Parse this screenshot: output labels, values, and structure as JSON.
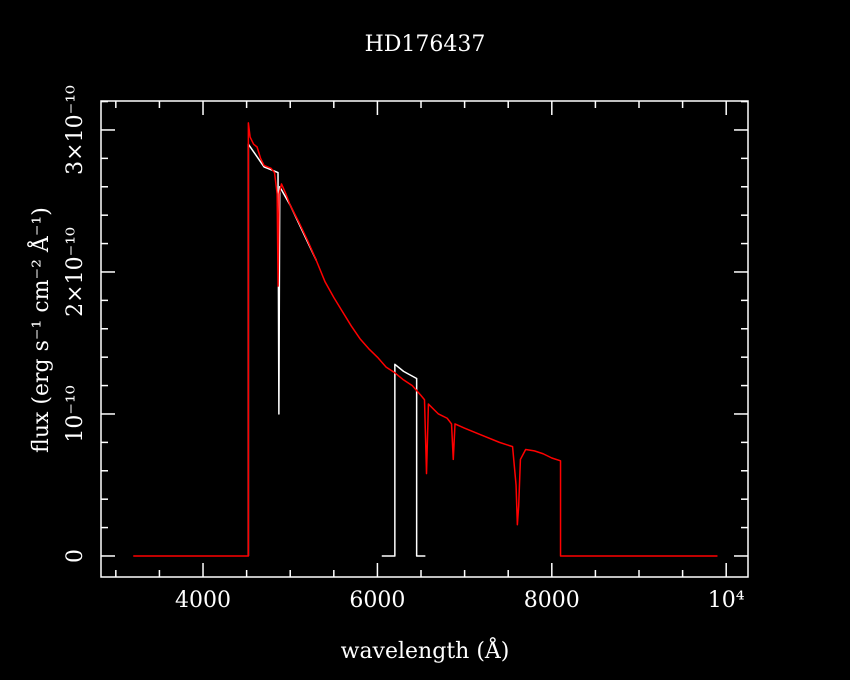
{
  "chart_data": {
    "type": "line",
    "title": "HD176437",
    "x_label": "wavelength (Å)",
    "y_label": "flux (erg s⁻¹ cm⁻² Å⁻¹)",
    "xlim": [
      2830,
      10250
    ],
    "ylim": [
      -1.48e-11,
      3.204e-10
    ],
    "xticks": [
      4000,
      6000,
      8000,
      {
        "value": 10000,
        "label": "10⁴"
      }
    ],
    "yticks": [
      0,
      {
        "value": 1e-10,
        "label": "10⁻¹⁰"
      },
      {
        "value": 2e-10,
        "label": "2×10⁻¹⁰"
      },
      {
        "value": 3e-10,
        "label": "3×10⁻¹⁰"
      }
    ],
    "x_minor_ticks": [
      3000,
      3500,
      4500,
      5000,
      5500,
      6500,
      7000,
      7500,
      8500,
      9000,
      9500
    ],
    "y_minor_ticks": [
      2e-11,
      4e-11,
      6e-11,
      8e-11,
      1.2e-10,
      1.4e-10,
      1.6e-10,
      1.8e-10,
      2.2e-10,
      2.4e-10,
      2.6e-10,
      2.8e-10,
      3.2e-10
    ],
    "series": [
      {
        "color": "#ffffff",
        "x": [
          4520,
          4520,
          4700,
          4860,
          4870,
          4880,
          5000,
          5300,
          null,
          6050,
          6200,
          6200,
          6300,
          6450,
          6450,
          6550
        ],
        "values": [
          0,
          2.9e-10,
          2.74e-10,
          2.7e-10,
          1e-10,
          2.6e-10,
          2.47e-10,
          2.08e-10,
          null,
          0,
          0,
          1.35e-10,
          1.3e-10,
          1.25e-10,
          0,
          0
        ]
      },
      {
        "color": "#ff0000",
        "x": [
          3200,
          4520,
          4520,
          4540,
          4580,
          4620,
          4660,
          4700,
          4740,
          4780,
          4820,
          4850,
          4861,
          4872,
          4900,
          4950,
          5000,
          5100,
          5200,
          5300,
          5400,
          5500,
          5600,
          5700,
          5800,
          5900,
          6000,
          6100,
          6200,
          6300,
          6400,
          6500,
          6540,
          6563,
          6585,
          6700,
          6800,
          6850,
          6870,
          6890,
          7000,
          7200,
          7400,
          7550,
          7590,
          7605,
          7620,
          7640,
          7700,
          7800,
          7900,
          8000,
          8100,
          8100,
          9900
        ],
        "values": [
          0,
          0,
          3.05e-10,
          2.95e-10,
          2.9e-10,
          2.88e-10,
          2.8e-10,
          2.75e-10,
          2.74e-10,
          2.73e-10,
          2.7e-10,
          2.55e-10,
          1.9e-10,
          2.55e-10,
          2.62e-10,
          2.55e-10,
          2.47e-10,
          2.35e-10,
          2.22e-10,
          2.08e-10,
          1.93e-10,
          1.82e-10,
          1.72e-10,
          1.62e-10,
          1.53e-10,
          1.46e-10,
          1.4e-10,
          1.33e-10,
          1.29e-10,
          1.24e-10,
          1.2e-10,
          1.13e-10,
          1.1e-10,
          5.8e-11,
          1.07e-10,
          1e-10,
          9.7e-11,
          9.3e-11,
          6.8e-11,
          9.3e-11,
          9e-11,
          8.5e-11,
          8e-11,
          7.7e-11,
          5e-11,
          2.2e-11,
          3.5e-11,
          6.8e-11,
          7.5e-11,
          7.4e-11,
          7.2e-11,
          6.9e-11,
          6.7e-11,
          0,
          0
        ]
      }
    ]
  }
}
